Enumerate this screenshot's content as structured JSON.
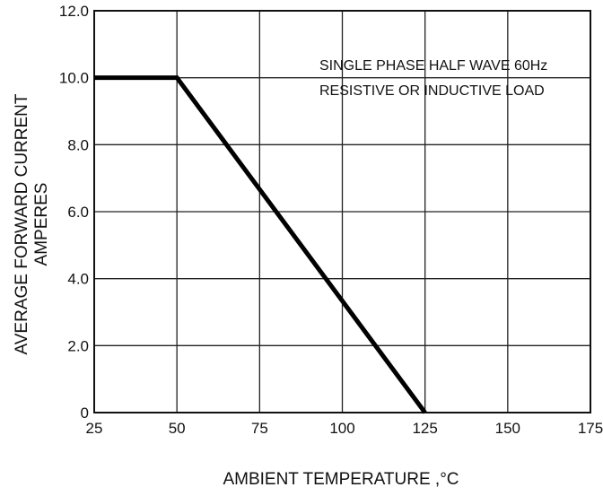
{
  "chart_data": {
    "type": "line",
    "xlabel": "AMBIENT TEMPERATURE ,°C",
    "ylabel_line1": "AVERAGE FORWARD CURRENT",
    "ylabel_line2": "AMPERES",
    "xlim": [
      25,
      175
    ],
    "ylim": [
      0,
      12
    ],
    "grid": true,
    "x_ticks": [
      25,
      50,
      75,
      100,
      125,
      150,
      175
    ],
    "x_tick_labels": [
      "25",
      "50",
      "75",
      "100",
      "125",
      "150",
      "175"
    ],
    "y_ticks": [
      0,
      2,
      4,
      6,
      8,
      10,
      12
    ],
    "y_tick_labels": [
      "0",
      "2.0",
      "4.0",
      "6.0",
      "8.0",
      "10.0",
      "12.0"
    ],
    "annotation_line1": "SINGLE PHASE HALF WAVE 60Hz",
    "annotation_line2": "RESISTIVE OR INDUCTIVE LOAD",
    "series": [
      {
        "x": [
          25,
          50,
          125
        ],
        "y": [
          10,
          10,
          0
        ]
      }
    ],
    "line_color": "#000000",
    "grid_color": "#222222"
  }
}
